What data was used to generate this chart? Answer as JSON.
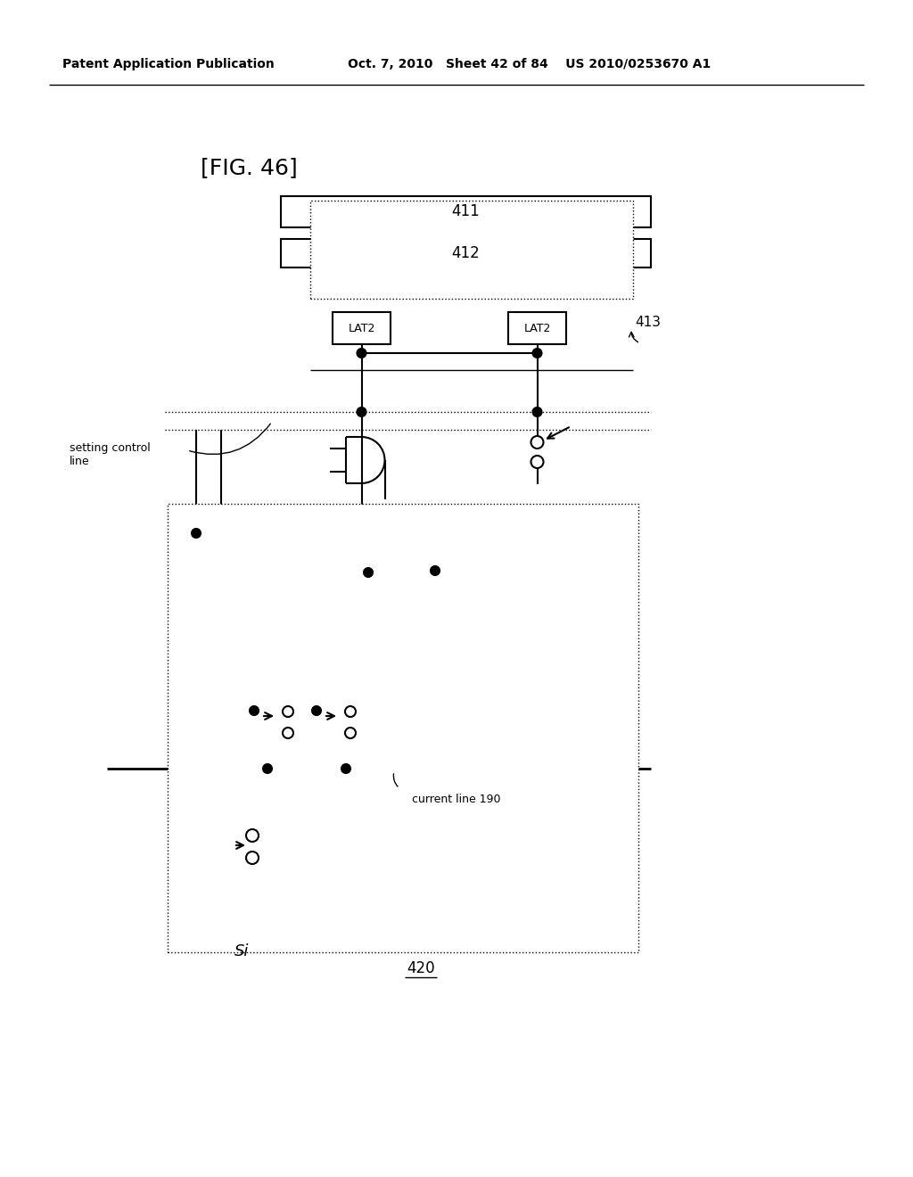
{
  "bg_color": "#ffffff",
  "header_left": "Patent Application Publication",
  "header_right": "Oct. 7, 2010   Sheet 42 of 84    US 2010/0253670 A1",
  "fig_label": "[FIG. 46]",
  "label_411": "411",
  "label_412": "412",
  "label_413": "413",
  "label_420": "420",
  "label_Si": "Si",
  "label_setting": "setting control\nline",
  "label_current": "current line 190",
  "label_LAT2": "LAT2"
}
